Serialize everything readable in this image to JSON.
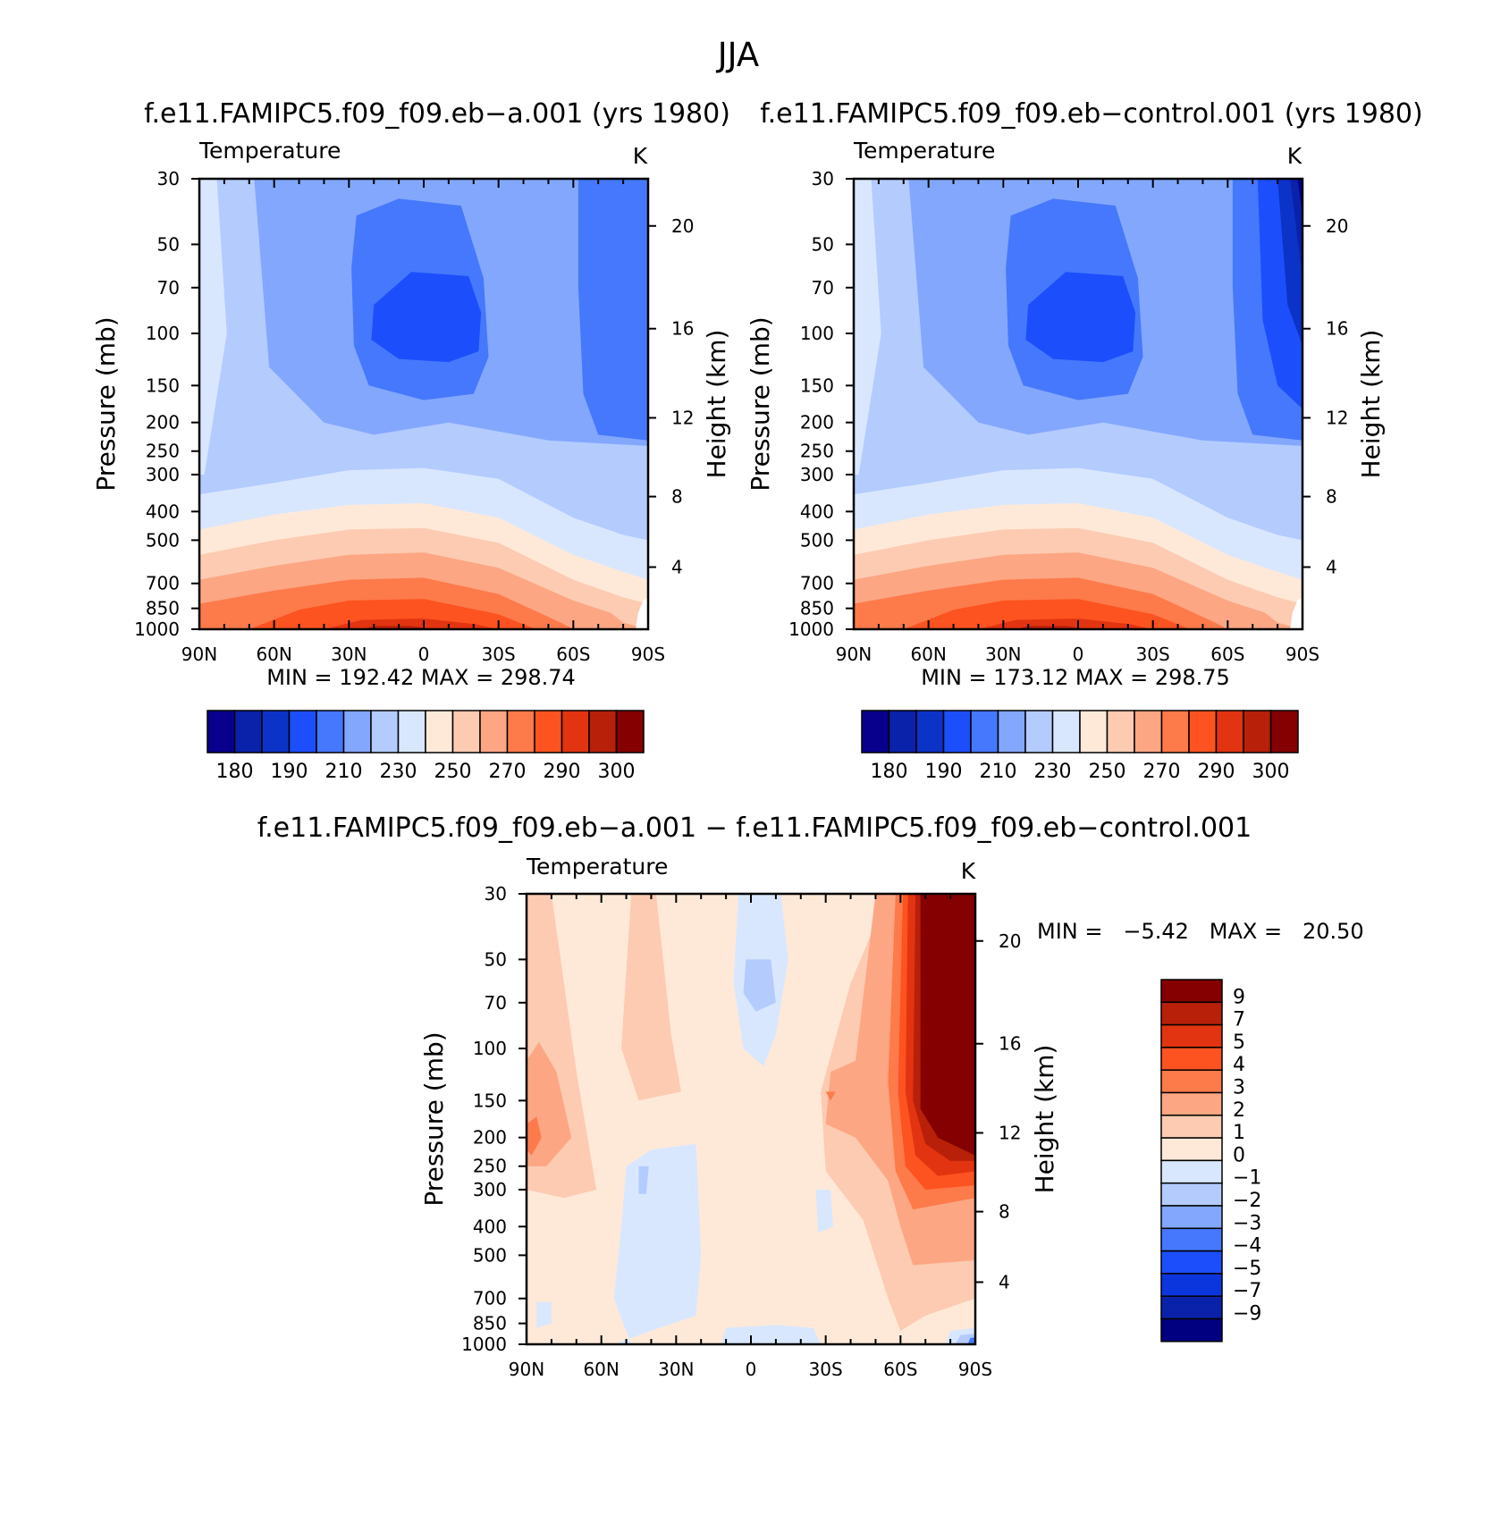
{
  "figure_title": "JJA",
  "panels": [
    {
      "title": "f.e11.FAMIPC5.f09_f09.eb−a.001 (yrs 1980)",
      "variable": "Temperature",
      "units": "K",
      "ylabel_left": "Pressure (mb)",
      "ylabel_right": "Height (km)",
      "minmax": "MIN = 192.42   MAX = 298.74"
    },
    {
      "title": "f.e11.FAMIPC5.f09_f09.eb−control.001 (yrs 1980)",
      "variable": "Temperature",
      "units": "K",
      "ylabel_left": "Pressure (mb)",
      "ylabel_right": "Height (km)",
      "minmax": "MIN = 173.12   MAX = 298.75"
    },
    {
      "title": "f.e11.FAMIPC5.f09_f09.eb−a.001 − f.e11.FAMIPC5.f09_f09.eb−control.001",
      "variable": "Temperature",
      "units": "K",
      "ylabel_left": "Pressure (mb)",
      "ylabel_right": "Height (km)",
      "minmax": "MIN =   −5.42   MAX =   20.50"
    }
  ],
  "chart_data": [
    {
      "type": "heatmap",
      "title": "f.e11.FAMIPC5.f09_f09.eb−a.001 (yrs 1980)",
      "x_ticks": [
        "90N",
        "60N",
        "30N",
        "0",
        "30S",
        "60S",
        "90S"
      ],
      "x_values": [
        90,
        60,
        30,
        0,
        -30,
        -60,
        -90
      ],
      "y_ticks": [
        "30",
        "50",
        "70",
        "100",
        "150",
        "200",
        "250",
        "300",
        "400",
        "500",
        "700",
        "850",
        "1000"
      ],
      "y_values": [
        30,
        50,
        70,
        100,
        150,
        200,
        250,
        300,
        400,
        500,
        700,
        850,
        1000
      ],
      "y_scale": "log",
      "height_ticks": [
        "4",
        "8",
        "12",
        "16",
        "20"
      ],
      "levels": [
        180,
        185,
        190,
        200,
        210,
        220,
        230,
        240,
        250,
        260,
        270,
        280,
        290,
        295,
        300
      ],
      "colorbar_labels": [
        "180",
        "190",
        "210",
        "230",
        "250",
        "270",
        "290",
        "300"
      ],
      "min": 192.42,
      "max": 298.74,
      "bands_bottom_up": [
        {
          "range": "290-295",
          "top_mb": 900
        },
        {
          "range": "280-290",
          "top_mb": 820
        },
        {
          "range": "270-280",
          "top_mb": 700
        },
        {
          "range": "260-270",
          "top_mb": 600
        },
        {
          "range": "250-260",
          "top_mb": 500
        },
        {
          "range": "240-250",
          "top_mb": 420
        },
        {
          "range": "230-240",
          "top_mb": 340
        },
        {
          "range": "220-230",
          "top_mb": 270
        }
      ],
      "tropical_min_region": {
        "center_lat": 0,
        "pressure_mb": 100,
        "value_range": "200-210"
      }
    },
    {
      "type": "heatmap",
      "title": "f.e11.FAMIPC5.f09_f09.eb−control.001 (yrs 1980)",
      "x_ticks": [
        "90N",
        "60N",
        "30N",
        "0",
        "30S",
        "60S",
        "90S"
      ],
      "x_values": [
        90,
        60,
        30,
        0,
        -30,
        -60,
        -90
      ],
      "y_ticks": [
        "30",
        "50",
        "70",
        "100",
        "150",
        "200",
        "250",
        "300",
        "400",
        "500",
        "700",
        "850",
        "1000"
      ],
      "y_values": [
        30,
        50,
        70,
        100,
        150,
        200,
        250,
        300,
        400,
        500,
        700,
        850,
        1000
      ],
      "y_scale": "log",
      "height_ticks": [
        "4",
        "8",
        "12",
        "16",
        "20"
      ],
      "levels": [
        180,
        185,
        190,
        200,
        210,
        220,
        230,
        240,
        250,
        260,
        270,
        280,
        290,
        295,
        300
      ],
      "colorbar_labels": [
        "180",
        "190",
        "210",
        "230",
        "250",
        "270",
        "290",
        "300"
      ],
      "min": 173.12,
      "max": 298.75,
      "bands_bottom_up": [
        {
          "range": "290-295",
          "top_mb": 900
        },
        {
          "range": "280-290",
          "top_mb": 820
        },
        {
          "range": "270-280",
          "top_mb": 700
        },
        {
          "range": "260-270",
          "top_mb": 600
        },
        {
          "range": "250-260",
          "top_mb": 500
        },
        {
          "range": "240-250",
          "top_mb": 420
        },
        {
          "range": "230-240",
          "top_mb": 340
        },
        {
          "range": "220-230",
          "top_mb": 270
        }
      ],
      "tropical_min_region": {
        "center_lat": 0,
        "pressure_mb": 100,
        "value_range": "200-210"
      },
      "south_pole_cold_region": {
        "lat": -90,
        "pressure_mb": 30,
        "value_range": "<180"
      }
    },
    {
      "type": "heatmap",
      "title": "f.e11.FAMIPC5.f09_f09.eb−a.001 − f.e11.FAMIPC5.f09_f09.eb−control.001",
      "x_ticks": [
        "90N",
        "60N",
        "30N",
        "0",
        "30S",
        "60S",
        "90S"
      ],
      "x_values": [
        90,
        60,
        30,
        0,
        -30,
        -60,
        -90
      ],
      "y_ticks": [
        "30",
        "50",
        "70",
        "100",
        "150",
        "200",
        "250",
        "300",
        "400",
        "500",
        "700",
        "850",
        "1000"
      ],
      "y_values": [
        30,
        50,
        70,
        100,
        150,
        200,
        250,
        300,
        400,
        500,
        700,
        850,
        1000
      ],
      "y_scale": "log",
      "height_ticks": [
        "4",
        "8",
        "12",
        "16",
        "20"
      ],
      "levels": [
        -9,
        -7,
        -5,
        -4,
        -3,
        -2,
        -1,
        0,
        1,
        2,
        3,
        4,
        5,
        7,
        9
      ],
      "colorbar_labels": [
        "9",
        "7",
        "5",
        "4",
        "3",
        "2",
        "1",
        "0",
        "−1",
        "−2",
        "−3",
        "−4",
        "−5",
        "−7",
        "−9"
      ],
      "min": -5.42,
      "max": 20.5,
      "features": [
        {
          "desc": "background",
          "value_range": "0-1"
        },
        {
          "desc": "south polar stratosphere",
          "lat_range": [
            -70,
            -90
          ],
          "pressure_range_mb": [
            30,
            250
          ],
          "value_range": ">9"
        },
        {
          "desc": "equatorial stratosphere",
          "lat": 0,
          "pressure_range_mb": [
            30,
            120
          ],
          "value_range": "-1-0"
        }
      ]
    }
  ],
  "colors": {
    "temperature_palette": [
      "#08008c",
      "#0a22aa",
      "#0b33c8",
      "#1c4ffb",
      "#4578fc",
      "#83a7fd",
      "#b4cbfe",
      "#d9e7fe",
      "#fee9d8",
      "#fccbb2",
      "#fca683",
      "#fd7a4a",
      "#fc5320",
      "#e23410",
      "#b8200a",
      "#850000"
    ],
    "difference_palette": [
      "#000080",
      "#0a22aa",
      "#0c36dd",
      "#1c4ffb",
      "#4578fc",
      "#83a7fd",
      "#b4cbfe",
      "#d9e7fe",
      "#fee9d8",
      "#fccbb2",
      "#fca683",
      "#fd7a4a",
      "#fc5320",
      "#e23410",
      "#b8200a",
      "#850000"
    ]
  }
}
